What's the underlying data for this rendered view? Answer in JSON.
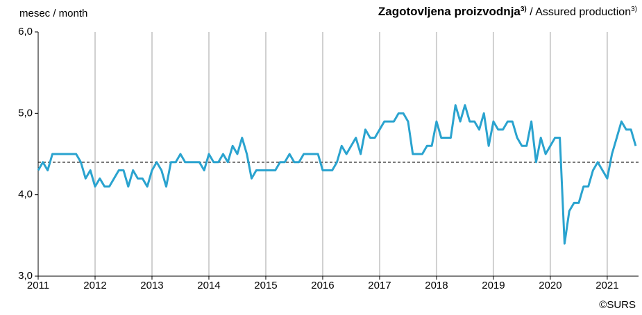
{
  "chart_data": {
    "type": "line",
    "axis_label": "mesec / month",
    "title": {
      "main": "Zagotovljena proizvodnja",
      "main_note": "3)",
      "sub": " / Assured production",
      "sub_note": "3)"
    },
    "source": "©SURS",
    "x": [
      2011,
      2011.083,
      2011.167,
      2011.25,
      2011.333,
      2011.417,
      2011.5,
      2011.583,
      2011.667,
      2011.75,
      2011.833,
      2011.917,
      2012,
      2012.083,
      2012.167,
      2012.25,
      2012.333,
      2012.417,
      2012.5,
      2012.583,
      2012.667,
      2012.75,
      2012.833,
      2012.917,
      2013,
      2013.083,
      2013.167,
      2013.25,
      2013.333,
      2013.417,
      2013.5,
      2013.583,
      2013.667,
      2013.75,
      2013.833,
      2013.917,
      2014,
      2014.083,
      2014.167,
      2014.25,
      2014.333,
      2014.417,
      2014.5,
      2014.583,
      2014.667,
      2014.75,
      2014.833,
      2014.917,
      2015,
      2015.083,
      2015.167,
      2015.25,
      2015.333,
      2015.417,
      2015.5,
      2015.583,
      2015.667,
      2015.75,
      2015.833,
      2015.917,
      2016,
      2016.083,
      2016.167,
      2016.25,
      2016.333,
      2016.417,
      2016.5,
      2016.583,
      2016.667,
      2016.75,
      2016.833,
      2016.917,
      2017,
      2017.083,
      2017.167,
      2017.25,
      2017.333,
      2017.417,
      2017.5,
      2017.583,
      2017.667,
      2017.75,
      2017.833,
      2017.917,
      2018,
      2018.083,
      2018.167,
      2018.25,
      2018.333,
      2018.417,
      2018.5,
      2018.583,
      2018.667,
      2018.75,
      2018.833,
      2018.917,
      2019,
      2019.083,
      2019.167,
      2019.25,
      2019.333,
      2019.417,
      2019.5,
      2019.583,
      2019.667,
      2019.75,
      2019.833,
      2019.917,
      2020,
      2020.083,
      2020.167,
      2020.25,
      2020.333,
      2020.417,
      2020.5,
      2020.583,
      2020.667,
      2020.75,
      2020.833,
      2020.917,
      2021,
      2021.083,
      2021.167,
      2021.25,
      2021.333,
      2021.417,
      2021.5
    ],
    "series": [
      {
        "color": "#2aa3cf",
        "values": [
          4.3,
          4.4,
          4.3,
          4.5,
          4.5,
          4.5,
          4.5,
          4.5,
          4.5,
          4.4,
          4.2,
          4.3,
          4.1,
          4.2,
          4.1,
          4.1,
          4.2,
          4.3,
          4.3,
          4.1,
          4.3,
          4.2,
          4.2,
          4.1,
          4.3,
          4.4,
          4.3,
          4.1,
          4.4,
          4.4,
          4.5,
          4.4,
          4.4,
          4.4,
          4.4,
          4.3,
          4.5,
          4.4,
          4.4,
          4.5,
          4.4,
          4.6,
          4.5,
          4.7,
          4.5,
          4.2,
          4.3,
          4.3,
          4.3,
          4.3,
          4.3,
          4.4,
          4.4,
          4.5,
          4.4,
          4.4,
          4.5,
          4.5,
          4.5,
          4.5,
          4.3,
          4.3,
          4.3,
          4.4,
          4.6,
          4.5,
          4.6,
          4.7,
          4.5,
          4.8,
          4.7,
          4.7,
          4.8,
          4.9,
          4.9,
          4.9,
          5.0,
          5.0,
          4.9,
          4.5,
          4.5,
          4.5,
          4.6,
          4.6,
          4.9,
          4.7,
          4.7,
          4.7,
          5.1,
          4.9,
          5.1,
          4.9,
          4.9,
          4.8,
          5.0,
          4.6,
          4.9,
          4.8,
          4.8,
          4.9,
          4.9,
          4.7,
          4.6,
          4.6,
          4.9,
          4.4,
          4.7,
          4.5,
          4.6,
          4.7,
          4.7,
          3.4,
          3.8,
          3.9,
          3.9,
          4.1,
          4.1,
          4.3,
          4.4,
          4.3,
          4.2,
          4.5,
          4.7,
          4.9,
          4.8,
          4.8,
          4.6
        ]
      }
    ],
    "reference_line": 4.4,
    "xlim": [
      2011,
      2021.55
    ],
    "xticks": [
      2011,
      2012,
      2013,
      2014,
      2015,
      2016,
      2017,
      2018,
      2019,
      2020,
      2021
    ],
    "ylim": [
      3,
      6
    ],
    "yticks": [
      {
        "value": 3,
        "label": "3,0"
      },
      {
        "value": 4,
        "label": "4,0"
      },
      {
        "value": 5,
        "label": "5,0"
      },
      {
        "value": 6,
        "label": "6,0"
      }
    ],
    "grid": true
  }
}
